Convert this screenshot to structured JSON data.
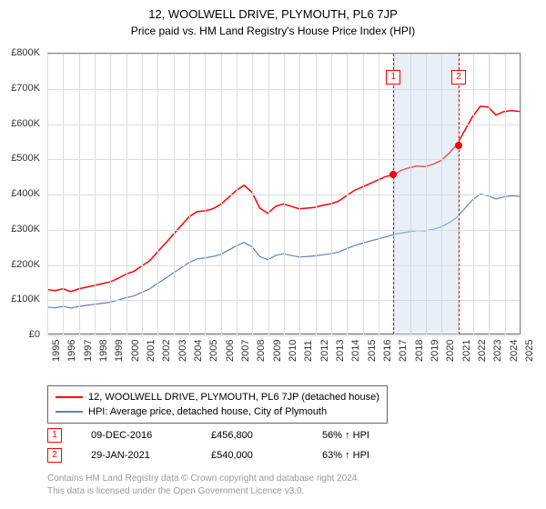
{
  "title": "12, WOOLWELL DRIVE, PLYMOUTH, PL6 7JP",
  "subtitle": "Price paid vs. HM Land Registry's House Price Index (HPI)",
  "chart": {
    "type": "line",
    "background_color": "#ffffff",
    "grid_color": "#dddddd",
    "axis_color": "#666666",
    "ylim": [
      0,
      800000
    ],
    "ytick_step": 100000,
    "y_labels": [
      "£0",
      "£100K",
      "£200K",
      "£300K",
      "£400K",
      "£500K",
      "£600K",
      "£700K",
      "£800K"
    ],
    "x_years": [
      1995,
      1996,
      1997,
      1998,
      1999,
      2000,
      2001,
      2002,
      2003,
      2004,
      2005,
      2006,
      2007,
      2008,
      2009,
      2010,
      2011,
      2012,
      2013,
      2014,
      2015,
      2016,
      2017,
      2018,
      2019,
      2020,
      2021,
      2022,
      2023,
      2024,
      2025
    ],
    "label_fontsize": 11,
    "series": [
      {
        "name": "property",
        "label": "12, WOOLWELL DRIVE, PLYMOUTH, PL6 7JP (detached house)",
        "color": "#ff0000",
        "line_width": 1.5,
        "data": [
          [
            1995,
            128000
          ],
          [
            1995.5,
            125000
          ],
          [
            1996,
            130000
          ],
          [
            1996.5,
            122000
          ],
          [
            1997,
            130000
          ],
          [
            1997.5,
            135000
          ],
          [
            1998,
            140000
          ],
          [
            1998.5,
            145000
          ],
          [
            1999,
            150000
          ],
          [
            1999.5,
            160000
          ],
          [
            2000,
            172000
          ],
          [
            2000.5,
            180000
          ],
          [
            2001,
            195000
          ],
          [
            2001.5,
            210000
          ],
          [
            2002,
            235000
          ],
          [
            2002.5,
            260000
          ],
          [
            2003,
            285000
          ],
          [
            2003.5,
            310000
          ],
          [
            2004,
            335000
          ],
          [
            2004.5,
            350000
          ],
          [
            2005,
            352000
          ],
          [
            2005.5,
            358000
          ],
          [
            2006,
            370000
          ],
          [
            2006.5,
            390000
          ],
          [
            2007,
            410000
          ],
          [
            2007.5,
            425000
          ],
          [
            2008,
            405000
          ],
          [
            2008.5,
            360000
          ],
          [
            2009,
            345000
          ],
          [
            2009.5,
            365000
          ],
          [
            2010,
            372000
          ],
          [
            2010.5,
            365000
          ],
          [
            2011,
            358000
          ],
          [
            2011.5,
            360000
          ],
          [
            2012,
            362000
          ],
          [
            2012.5,
            368000
          ],
          [
            2013,
            372000
          ],
          [
            2013.5,
            380000
          ],
          [
            2014,
            395000
          ],
          [
            2014.5,
            410000
          ],
          [
            2015,
            420000
          ],
          [
            2015.5,
            430000
          ],
          [
            2016,
            440000
          ],
          [
            2016.5,
            450000
          ],
          [
            2017,
            455000
          ],
          [
            2017.5,
            468000
          ],
          [
            2018,
            475000
          ],
          [
            2018.5,
            480000
          ],
          [
            2019,
            478000
          ],
          [
            2019.5,
            485000
          ],
          [
            2020,
            495000
          ],
          [
            2020.5,
            515000
          ],
          [
            2021,
            540000
          ],
          [
            2021.5,
            580000
          ],
          [
            2022,
            620000
          ],
          [
            2022.5,
            650000
          ],
          [
            2023,
            648000
          ],
          [
            2023.5,
            625000
          ],
          [
            2024,
            635000
          ],
          [
            2024.5,
            638000
          ],
          [
            2025,
            635000
          ]
        ]
      },
      {
        "name": "hpi",
        "label": "HPI: Average price, detached house, City of Plymouth",
        "color": "#6080c0",
        "line_width": 1.2,
        "data": [
          [
            1995,
            78000
          ],
          [
            1995.5,
            76000
          ],
          [
            1996,
            80000
          ],
          [
            1996.5,
            75000
          ],
          [
            1997,
            80000
          ],
          [
            1997.5,
            83000
          ],
          [
            1998,
            86000
          ],
          [
            1998.5,
            89000
          ],
          [
            1999,
            92000
          ],
          [
            1999.5,
            98000
          ],
          [
            2000,
            105000
          ],
          [
            2000.5,
            110000
          ],
          [
            2001,
            120000
          ],
          [
            2001.5,
            130000
          ],
          [
            2002,
            145000
          ],
          [
            2002.5,
            160000
          ],
          [
            2003,
            175000
          ],
          [
            2003.5,
            190000
          ],
          [
            2004,
            205000
          ],
          [
            2004.5,
            215000
          ],
          [
            2005,
            218000
          ],
          [
            2005.5,
            222000
          ],
          [
            2006,
            228000
          ],
          [
            2006.5,
            240000
          ],
          [
            2007,
            252000
          ],
          [
            2007.5,
            262000
          ],
          [
            2008,
            250000
          ],
          [
            2008.5,
            222000
          ],
          [
            2009,
            213000
          ],
          [
            2009.5,
            225000
          ],
          [
            2010,
            230000
          ],
          [
            2010.5,
            225000
          ],
          [
            2011,
            221000
          ],
          [
            2011.5,
            222000
          ],
          [
            2012,
            224000
          ],
          [
            2012.5,
            227000
          ],
          [
            2013,
            230000
          ],
          [
            2013.5,
            235000
          ],
          [
            2014,
            244000
          ],
          [
            2014.5,
            253000
          ],
          [
            2015,
            260000
          ],
          [
            2015.5,
            266000
          ],
          [
            2016,
            272000
          ],
          [
            2016.5,
            278000
          ],
          [
            2017,
            285000
          ],
          [
            2017.5,
            289000
          ],
          [
            2018,
            293000
          ],
          [
            2018.5,
            296000
          ],
          [
            2019,
            295000
          ],
          [
            2019.5,
            300000
          ],
          [
            2020,
            306000
          ],
          [
            2020.5,
            318000
          ],
          [
            2021,
            333000
          ],
          [
            2021.5,
            358000
          ],
          [
            2022,
            383000
          ],
          [
            2022.5,
            400000
          ],
          [
            2023,
            395000
          ],
          [
            2023.5,
            386000
          ],
          [
            2024,
            392000
          ],
          [
            2024.5,
            395000
          ],
          [
            2025,
            393000
          ]
        ]
      }
    ],
    "markers": [
      {
        "id": "1",
        "x": 2016.94,
        "y": 456800,
        "color": "#ff0000"
      },
      {
        "id": "2",
        "x": 2021.08,
        "y": 540000,
        "color": "#ff0000"
      }
    ],
    "marker_band": {
      "from": 2016.94,
      "to": 2021.08,
      "color": "rgba(200,215,235,0.4)"
    },
    "marker_line_color": "#ff0000",
    "marker_badge_border": "#ff0000",
    "marker_badge_text": "#ff0000",
    "marker_dot_size": 8
  },
  "legend": {
    "items": [
      {
        "color": "#ff0000",
        "label": "12, WOOLWELL DRIVE, PLYMOUTH, PL6 7JP (detached house)"
      },
      {
        "color": "#6080c0",
        "label": "HPI: Average price, detached house, City of Plymouth"
      }
    ]
  },
  "ref_table": {
    "rows": [
      {
        "badge": "1",
        "date": "09-DEC-2016",
        "price": "£456,800",
        "pct": "56% ↑ HPI"
      },
      {
        "badge": "2",
        "date": "29-JAN-2021",
        "price": "£540,000",
        "pct": "63% ↑ HPI"
      }
    ]
  },
  "footer": {
    "line1": "Contains HM Land Registry data © Crown copyright and database right 2024.",
    "line2": "This data is licensed under the Open Government Licence v3.0."
  }
}
